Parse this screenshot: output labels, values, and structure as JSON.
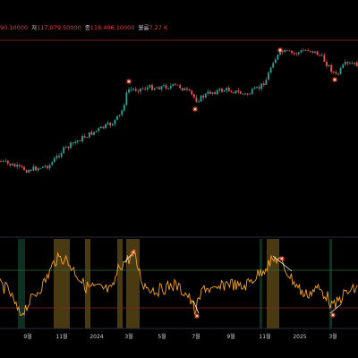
{
  "ohlc_bar": {
    "open_value": "90.10000",
    "low_label": "저",
    "low_value": "117,079.50000",
    "close_label": "종",
    "close_value": "118,406.10000",
    "volume_label": "볼륨",
    "volume_value": "7.27 K"
  },
  "colors": {
    "background": "#000000",
    "candle_up": "#26a69a",
    "candle_down": "#ef5350",
    "oscillator_line": "#f7a21b",
    "oscillator_band": "#4a3a12",
    "oscillator_band_green": "#0e2f22",
    "marker_star": "#ff5a36",
    "reference_line": "#7a1f2b",
    "osc_upper_line": "#2e6b3a",
    "osc_lower_line": "#8a2030"
  },
  "x_axis": {
    "labels": [
      "9월",
      "11월",
      "2024",
      "3월",
      "5월",
      "7월",
      "9월",
      "11월",
      "2025",
      "3월"
    ]
  },
  "markers": {
    "price_count": 4,
    "oscillator_count": 4
  }
}
